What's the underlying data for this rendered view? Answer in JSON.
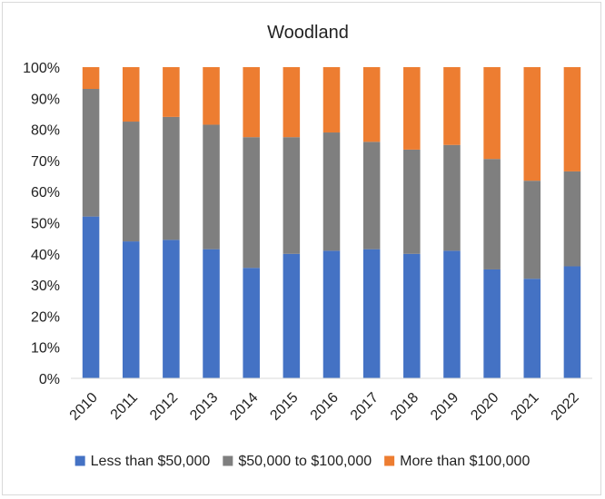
{
  "chart_data": {
    "type": "bar",
    "stacked": true,
    "percent_stacked": true,
    "title": "Woodland",
    "xlabel": "",
    "ylabel": "",
    "ylim": [
      0,
      100
    ],
    "y_ticks": [
      "0%",
      "10%",
      "20%",
      "30%",
      "40%",
      "50%",
      "60%",
      "70%",
      "80%",
      "90%",
      "100%"
    ],
    "grid": false,
    "legend_position": "bottom",
    "categories": [
      "2010",
      "2011",
      "2012",
      "2013",
      "2014",
      "2015",
      "2016",
      "2017",
      "2018",
      "2019",
      "2020",
      "2021",
      "2022"
    ],
    "series": [
      {
        "name": "Less than $50,000",
        "color": "#4472C4",
        "values": [
          52,
          44,
          44.5,
          41.5,
          35.5,
          40,
          41,
          41.5,
          40,
          41,
          35,
          32,
          36
        ]
      },
      {
        "name": "$50,000 to $100,000",
        "color": "#7F7F7F",
        "values": [
          41,
          38.5,
          39.5,
          40,
          42,
          37.5,
          38,
          34.5,
          33.5,
          34,
          35.5,
          31.5,
          30.5
        ]
      },
      {
        "name": "More than $100,000",
        "color": "#ED7D31",
        "values": [
          7,
          17.5,
          16,
          18.5,
          22.5,
          22.5,
          21,
          24,
          26.5,
          25,
          29.5,
          36.5,
          33.5
        ]
      }
    ]
  }
}
